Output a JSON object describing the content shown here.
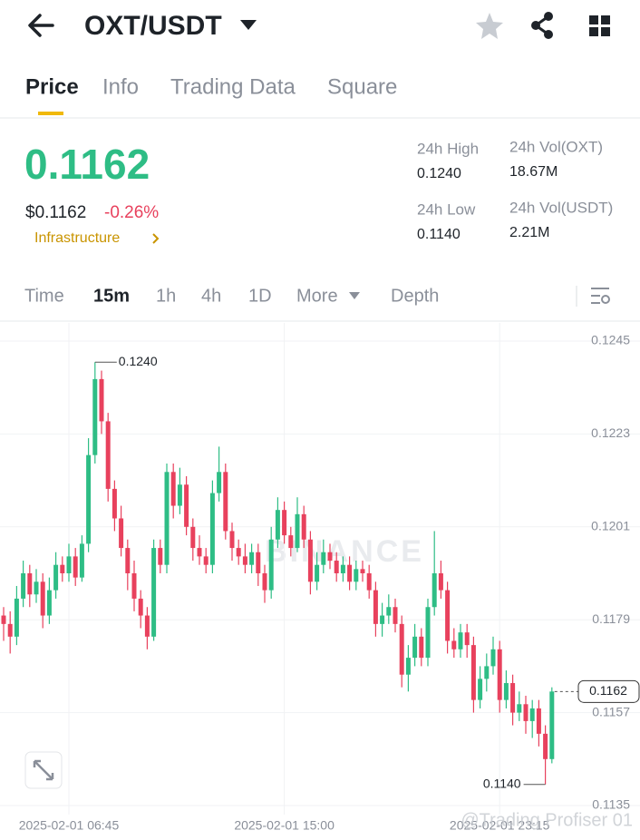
{
  "header": {
    "pair": "OXT/USDT"
  },
  "tabs": [
    "Price",
    "Info",
    "Trading Data",
    "Square"
  ],
  "price": {
    "last": "0.1162",
    "usd": "$0.1162",
    "change": "-0.26%",
    "sector": "Infrastructure"
  },
  "stats": [
    {
      "label": "24h High",
      "value": "0.1240"
    },
    {
      "label": "24h Vol(OXT)",
      "value": "18.67M"
    },
    {
      "label": "24h Low",
      "value": "0.1140"
    },
    {
      "label": "24h Vol(USDT)",
      "value": "2.21M"
    }
  ],
  "intervals": [
    "Time",
    "15m",
    "1h",
    "4h",
    "1D",
    "More",
    "Depth"
  ],
  "chart_data": {
    "type": "candlestick",
    "watermark": "BINANCE",
    "credit": "@Trading Profiser 01",
    "up_color": "#2ebd85",
    "down_color": "#e8415d",
    "grid": true,
    "high_label": "0.1240",
    "low_label": "0.1140",
    "last_label": "0.1162",
    "ylim": [
      0.1135,
      0.1245
    ],
    "yticks": [
      0.1245,
      0.1223,
      0.1201,
      0.1179,
      0.1157,
      0.1135
    ],
    "categories": [
      null,
      null,
      null,
      null,
      null,
      null,
      null,
      null,
      null,
      null,
      "2025-02-01 06:45",
      null,
      null,
      null,
      null,
      null,
      null,
      null,
      null,
      null,
      null,
      null,
      null,
      null,
      null,
      null,
      null,
      null,
      null,
      null,
      null,
      null,
      null,
      null,
      null,
      null,
      null,
      null,
      null,
      null,
      null,
      null,
      null,
      "2025-02-01 15:00",
      null,
      null,
      null,
      null,
      null,
      null,
      null,
      null,
      null,
      null,
      null,
      null,
      null,
      null,
      null,
      null,
      null,
      null,
      null,
      null,
      null,
      null,
      null,
      null,
      null,
      null,
      null,
      null,
      null,
      null,
      null,
      null,
      "2025-02-01 23:15",
      null,
      null,
      null,
      null,
      null,
      null,
      null,
      null
    ],
    "open": [
      0.118,
      0.1178,
      0.1175,
      0.1184,
      0.119,
      0.1185,
      0.1188,
      0.118,
      0.1186,
      0.1192,
      0.119,
      0.1194,
      0.1189,
      0.1197,
      0.1218,
      0.1236,
      0.1226,
      0.121,
      0.1203,
      0.1196,
      0.119,
      0.1184,
      0.118,
      0.1175,
      0.1196,
      0.1192,
      0.1214,
      0.1206,
      0.1211,
      0.1201,
      0.1196,
      0.1194,
      0.1192,
      0.1209,
      0.1214,
      0.12,
      0.1196,
      0.1194,
      0.1192,
      0.1195,
      0.119,
      0.1186,
      0.1198,
      0.1205,
      0.1199,
      0.1196,
      0.1204,
      0.1198,
      0.1188,
      0.1192,
      0.1195,
      0.1193,
      0.119,
      0.1192,
      0.1188,
      0.1191,
      0.119,
      0.1186,
      0.1178,
      0.118,
      0.1182,
      0.1178,
      0.1166,
      0.117,
      0.1175,
      0.117,
      0.1182,
      0.119,
      0.1186,
      0.1174,
      0.1172,
      0.1176,
      0.1173,
      0.116,
      0.1165,
      0.1168,
      0.1172,
      0.116,
      0.1164,
      0.1157,
      0.1159,
      0.1155,
      0.1158,
      0.1152,
      0.1146
    ],
    "high": [
      0.1182,
      0.1181,
      0.1187,
      0.1193,
      0.1192,
      0.1191,
      0.119,
      0.1189,
      0.1195,
      0.1194,
      0.1197,
      0.1196,
      0.1199,
      0.1222,
      0.124,
      0.1238,
      0.1228,
      0.1212,
      0.1206,
      0.1198,
      0.1193,
      0.1186,
      0.1182,
      0.1198,
      0.1198,
      0.1216,
      0.1216,
      0.1215,
      0.1213,
      0.1203,
      0.1199,
      0.1196,
      0.1212,
      0.122,
      0.1216,
      0.1202,
      0.1198,
      0.1197,
      0.1197,
      0.1197,
      0.1192,
      0.1201,
      0.1208,
      0.1207,
      0.1201,
      0.1208,
      0.1206,
      0.12,
      0.1195,
      0.1198,
      0.1197,
      0.1195,
      0.1194,
      0.1194,
      0.1193,
      0.1193,
      0.1192,
      0.1188,
      0.1183,
      0.1185,
      0.1184,
      0.118,
      0.1173,
      0.1178,
      0.1177,
      0.1184,
      0.12,
      0.1193,
      0.1188,
      0.1177,
      0.1178,
      0.1178,
      0.1175,
      0.1168,
      0.1171,
      0.1175,
      0.1174,
      0.1167,
      0.1166,
      0.1162,
      0.1161,
      0.116,
      0.116,
      0.1154,
      0.1163
    ],
    "low": [
      0.1174,
      0.1171,
      0.1173,
      0.1182,
      0.1182,
      0.1183,
      0.1177,
      0.1178,
      0.1184,
      0.1188,
      0.1188,
      0.1187,
      0.1188,
      0.1195,
      0.1216,
      0.1223,
      0.1207,
      0.12,
      0.1194,
      0.1186,
      0.1181,
      0.1177,
      0.1172,
      0.1174,
      0.119,
      0.119,
      0.1203,
      0.1204,
      0.1199,
      0.1193,
      0.1192,
      0.119,
      0.119,
      0.1207,
      0.1198,
      0.1193,
      0.1192,
      0.119,
      0.119,
      0.1187,
      0.1183,
      0.1184,
      0.1196,
      0.1197,
      0.1194,
      0.1195,
      0.1196,
      0.1185,
      0.1186,
      0.119,
      0.1191,
      0.1188,
      0.1188,
      0.1186,
      0.1186,
      0.1188,
      0.1184,
      0.1175,
      0.1175,
      0.1178,
      0.1176,
      0.1163,
      0.1162,
      0.1168,
      0.1168,
      0.1168,
      0.118,
      0.1184,
      0.1171,
      0.117,
      0.117,
      0.117,
      0.1157,
      0.1158,
      0.1162,
      0.1166,
      0.1157,
      0.1158,
      0.1154,
      0.1155,
      0.1152,
      0.1151,
      0.1149,
      0.114,
      0.1145
    ],
    "close": [
      0.1178,
      0.1175,
      0.1184,
      0.119,
      0.1185,
      0.1188,
      0.118,
      0.1186,
      0.1192,
      0.119,
      0.1194,
      0.1189,
      0.1197,
      0.1218,
      0.1236,
      0.1226,
      0.121,
      0.1203,
      0.1196,
      0.119,
      0.1184,
      0.118,
      0.1175,
      0.1196,
      0.1192,
      0.1214,
      0.1206,
      0.1211,
      0.1201,
      0.1196,
      0.1194,
      0.1192,
      0.1209,
      0.1214,
      0.12,
      0.1196,
      0.1194,
      0.1192,
      0.1195,
      0.119,
      0.1186,
      0.1198,
      0.1205,
      0.1199,
      0.1196,
      0.1204,
      0.1198,
      0.1188,
      0.1192,
      0.1195,
      0.1193,
      0.119,
      0.1192,
      0.1188,
      0.1191,
      0.119,
      0.1186,
      0.1178,
      0.118,
      0.1182,
      0.1178,
      0.1166,
      0.117,
      0.1175,
      0.117,
      0.1182,
      0.119,
      0.1186,
      0.1174,
      0.1172,
      0.1176,
      0.1173,
      0.116,
      0.1165,
      0.1168,
      0.1172,
      0.116,
      0.1164,
      0.1157,
      0.1159,
      0.1155,
      0.1158,
      0.1152,
      0.1146,
      0.1162
    ]
  }
}
